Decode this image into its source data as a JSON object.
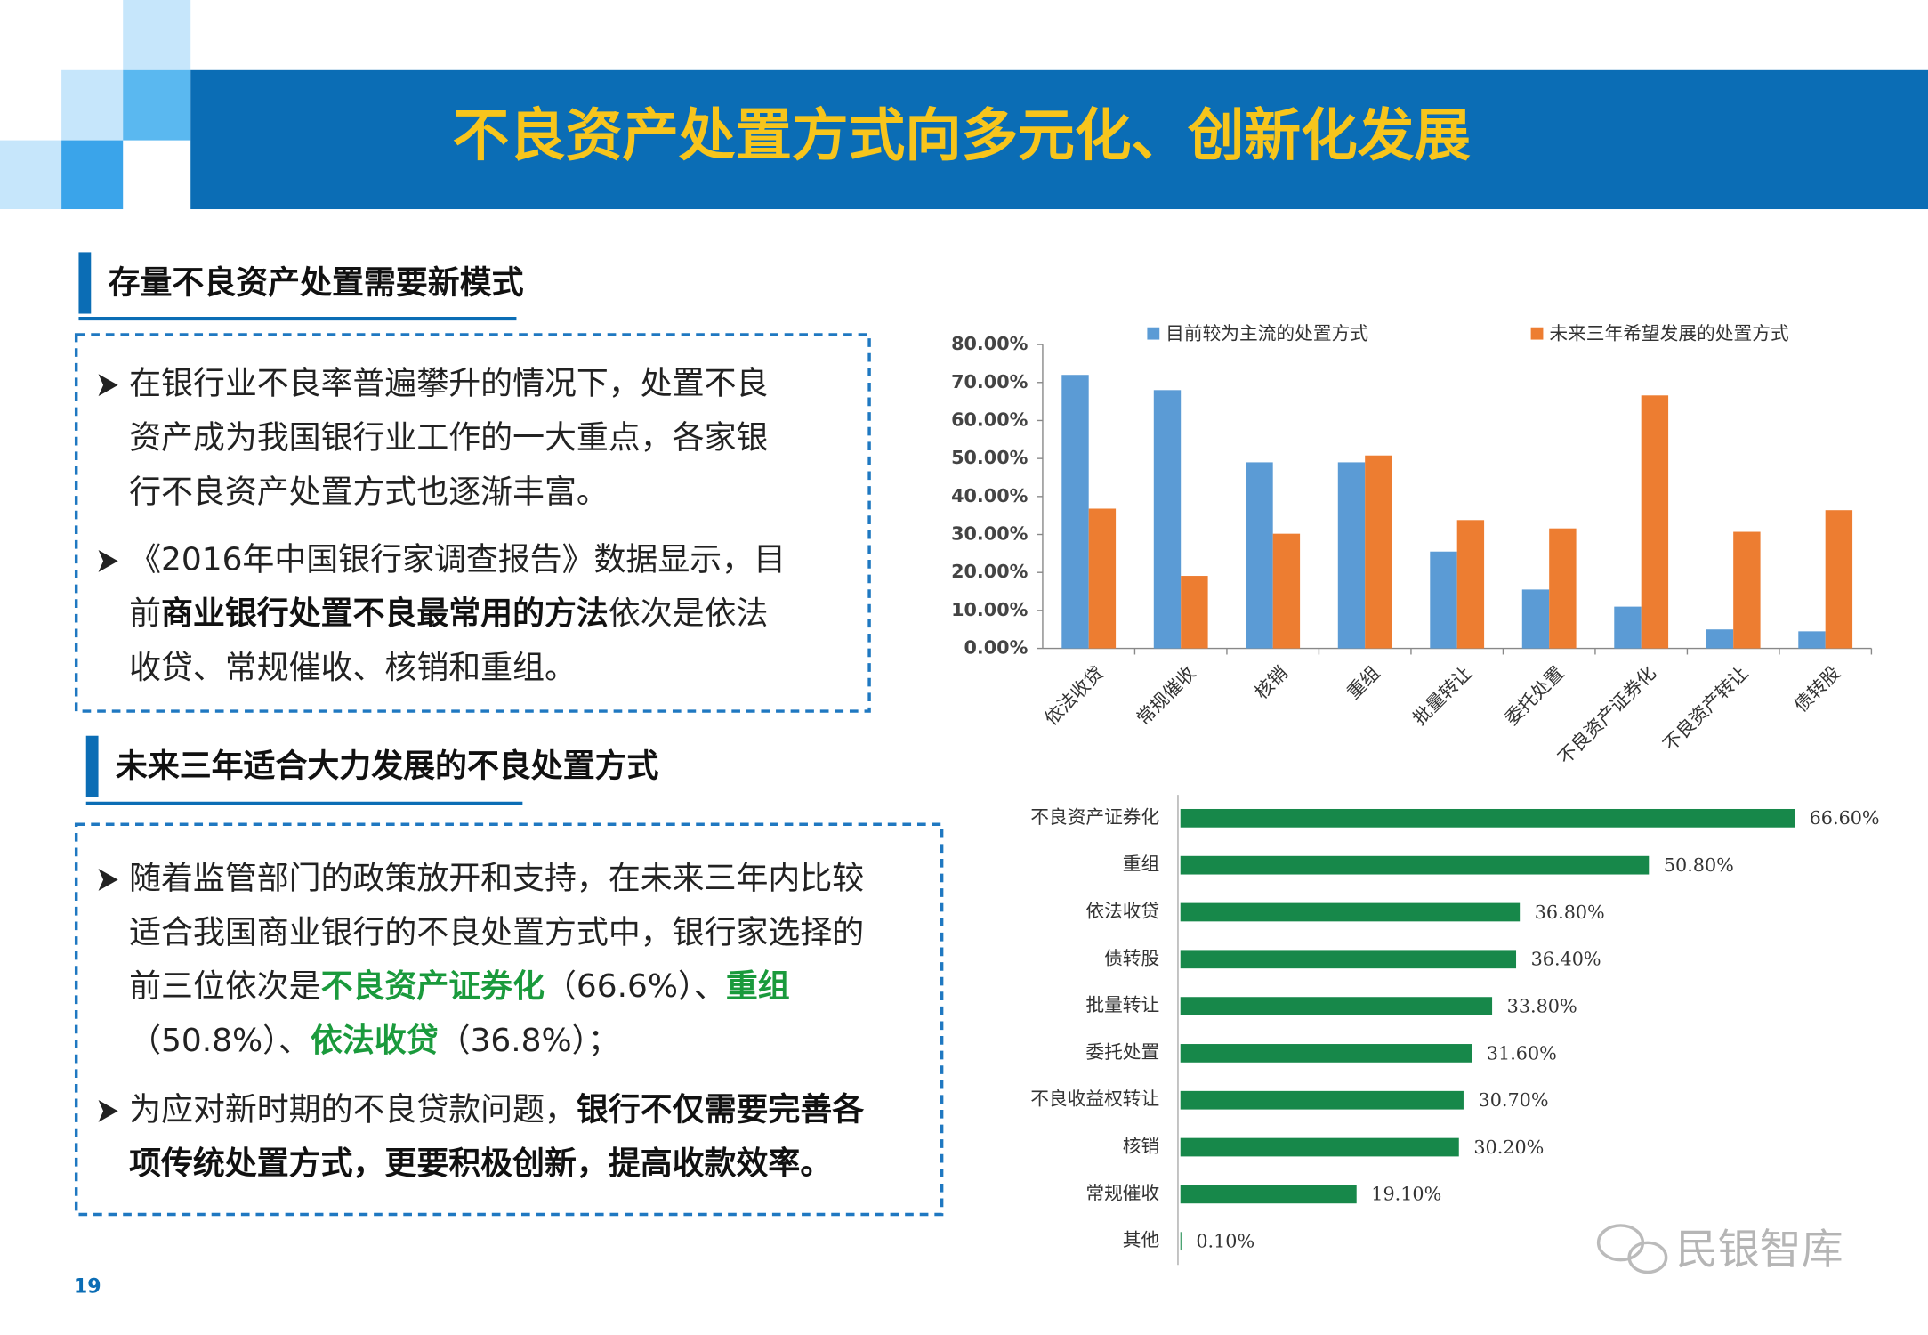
{
  "header": {
    "title": "不良资产处置方式向多元化、创新化发展"
  },
  "sections": [
    {
      "heading": "存量不良资产处置需要新模式",
      "bullets": [
        [
          [
            {
              "text": "在银行业不良率普遍攀升的情况下，处置不良"
            }
          ],
          [
            {
              "text": "资产成为我国银行业工作的一大重点，各家银"
            }
          ],
          [
            {
              "text": "行不良资产处置方式也逐渐丰富。"
            }
          ]
        ],
        [
          [
            {
              "text": "《2016年中国银行家调查报告》数据显示，目"
            }
          ],
          [
            {
              "text": "前"
            },
            {
              "text": "商业银行处置不良最常用的方法",
              "style": "bold"
            },
            {
              "text": "依次是依法"
            }
          ],
          [
            {
              "text": "收贷、常规催收、核销和重组。"
            }
          ]
        ]
      ]
    },
    {
      "heading": "未来三年适合大力发展的不良处置方式",
      "bullets": [
        [
          [
            {
              "text": "随着监管部门的政策放开和支持，在未来三年内比较"
            }
          ],
          [
            {
              "text": "适合我国商业银行的不良处置方式中，银行家选择的"
            }
          ],
          [
            {
              "text": "前三位依次是"
            },
            {
              "text": "不良资产证券化",
              "style": "green"
            },
            {
              "text": "（66.6%）、"
            },
            {
              "text": "重组",
              "style": "green"
            }
          ],
          [
            {
              "text": "（50.8%）、"
            },
            {
              "text": "依法收贷",
              "style": "green"
            },
            {
              "text": "（36.8%）；"
            }
          ]
        ],
        [
          [
            {
              "text": "为应对新时期的不良贷款问题，"
            },
            {
              "text": "银行不仅需要完善各",
              "style": "bold"
            }
          ],
          [
            {
              "text": "项传统处置方式，更要积极创新，提高收款效率。",
              "style": "bold"
            }
          ]
        ]
      ]
    }
  ],
  "chart_data": [
    {
      "type": "bar",
      "orientation": "vertical",
      "categories": [
        "依法收贷",
        "常规催收",
        "核销",
        "重组",
        "批量转让",
        "委托处置",
        "不良资产证券化",
        "不良资产转让",
        "债转股"
      ],
      "series": [
        {
          "name": "目前较为主流的处置方式",
          "color": "#5b9bd5",
          "values": [
            72,
            68,
            49,
            49,
            25.5,
            15.5,
            11,
            5,
            4.5
          ]
        },
        {
          "name": "未来三年希望发展的处置方式",
          "color": "#ed7d31",
          "values": [
            36.8,
            19.1,
            30.2,
            50.8,
            33.8,
            31.6,
            66.6,
            30.7,
            36.4
          ]
        }
      ],
      "ylim": [
        0,
        80
      ],
      "yticks": [
        {
          "value": 0,
          "label": "0.00%"
        },
        {
          "value": 10,
          "label": "10.00%"
        },
        {
          "value": 20,
          "label": "20.00%"
        },
        {
          "value": 30,
          "label": "30.00%"
        },
        {
          "value": 40,
          "label": "40.00%"
        },
        {
          "value": 50,
          "label": "50.00%"
        },
        {
          "value": 60,
          "label": "60.00%"
        },
        {
          "value": 70,
          "label": "70.00%"
        },
        {
          "value": 80,
          "label": "80.00%"
        }
      ],
      "legend": "top"
    },
    {
      "type": "bar",
      "orientation": "horizontal",
      "categories": [
        "不良资产证券化",
        "重组",
        "依法收贷",
        "债转股",
        "批量转让",
        "委托处置",
        "不良收益权转让",
        "核销",
        "常规催收",
        "其他"
      ],
      "values": [
        66.6,
        50.8,
        36.8,
        36.4,
        33.8,
        31.6,
        30.7,
        30.2,
        19.1,
        0.1
      ],
      "value_labels": [
        "66.60%",
        "50.80%",
        "36.80%",
        "36.40%",
        "33.80%",
        "31.60%",
        "30.70%",
        "30.20%",
        "19.10%",
        "0.10%"
      ],
      "color": "#17884a"
    }
  ],
  "footer": {
    "page_number": "19",
    "watermark": "民银智库"
  }
}
